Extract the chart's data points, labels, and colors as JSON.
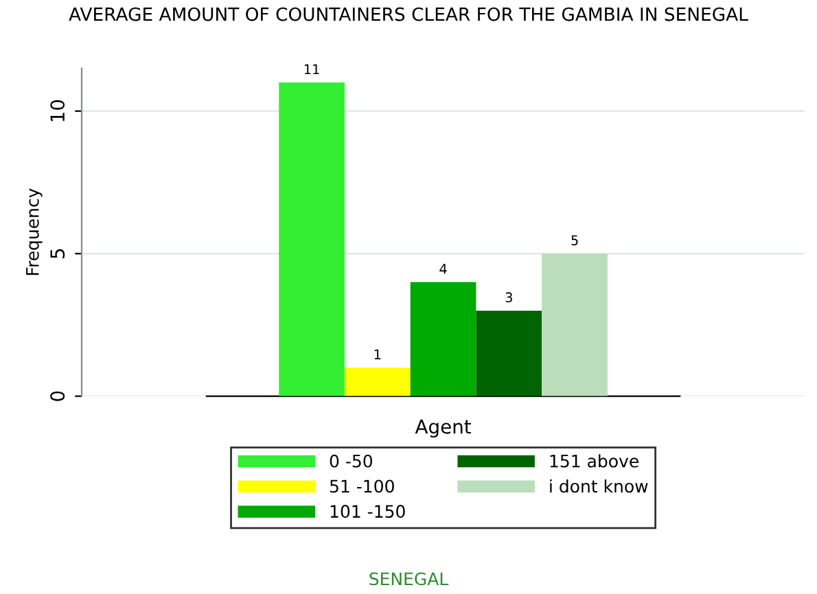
{
  "chart_data": {
    "type": "bar",
    "title": "AVERAGE AMOUNT OF COUNTAINERS CLEAR FOR THE GAMBIA IN SENEGAL",
    "ylabel": "Frequency",
    "categories": [
      "Agent"
    ],
    "series": [
      {
        "name": "0 -50",
        "color": "#33ee33",
        "values": [
          11
        ]
      },
      {
        "name": "51 -100",
        "color": "#ffff00",
        "values": [
          1
        ]
      },
      {
        "name": "101 -150",
        "color": "#00aa00",
        "values": [
          4
        ]
      },
      {
        "name": "151 above",
        "color": "#006400",
        "values": [
          3
        ]
      },
      {
        "name": "i dont know",
        "color": "#bbddbb",
        "values": [
          5
        ]
      }
    ],
    "ylim": [
      0,
      11.5
    ],
    "yticks": [
      0,
      5,
      10
    ],
    "grid": "y",
    "data_labels": true,
    "legend": "bottom",
    "annotations": [
      "SENEGAL"
    ]
  }
}
